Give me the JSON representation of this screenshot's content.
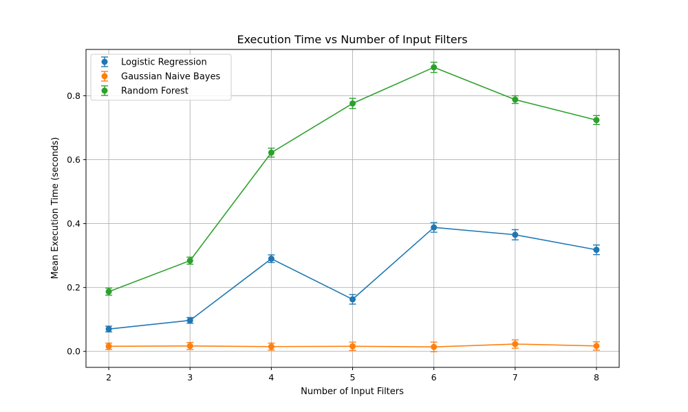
{
  "chart_data": {
    "type": "line",
    "title": "Execution Time vs Number of Input Filters",
    "xlabel": "Number of Input Filters",
    "ylabel": "Mean Execution Time (seconds)",
    "x": [
      2,
      3,
      4,
      5,
      6,
      7,
      8
    ],
    "xlim": [
      1.72,
      8.28
    ],
    "ylim": [
      -0.05,
      0.945
    ],
    "xticks": [
      2,
      3,
      4,
      5,
      6,
      7,
      8
    ],
    "yticks": [
      "0.0",
      "0.2",
      "0.4",
      "0.6",
      "0.8"
    ],
    "grid": true,
    "error_bars": true,
    "legend_position": "top-left",
    "series": [
      {
        "name": "Logistic Regression",
        "color": "#1f77b4",
        "values": [
          0.07,
          0.097,
          0.29,
          0.163,
          0.388,
          0.365,
          0.318
        ],
        "errors": [
          0.009,
          0.009,
          0.012,
          0.015,
          0.015,
          0.016,
          0.015
        ]
      },
      {
        "name": "Gaussian Naive Bayes",
        "color": "#ff7f0e",
        "values": [
          0.016,
          0.017,
          0.015,
          0.016,
          0.014,
          0.023,
          0.017
        ],
        "errors": [
          0.01,
          0.011,
          0.011,
          0.013,
          0.015,
          0.013,
          0.013
        ]
      },
      {
        "name": "Random Forest",
        "color": "#2ca02c",
        "values": [
          0.187,
          0.284,
          0.622,
          0.776,
          0.889,
          0.788,
          0.724
        ],
        "errors": [
          0.011,
          0.011,
          0.014,
          0.016,
          0.016,
          0.012,
          0.014
        ]
      }
    ]
  }
}
